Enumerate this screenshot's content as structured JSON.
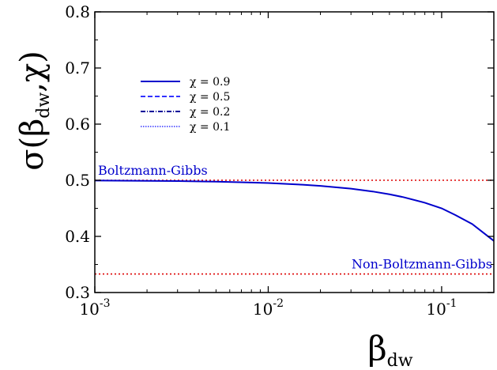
{
  "chart_data": {
    "type": "line",
    "xscale": "log",
    "xlim": [
      0.001,
      0.2
    ],
    "ylim": [
      0.3,
      0.8
    ],
    "grid": false,
    "legend_placement": "upper-left",
    "x_ticks": [
      {
        "value": 0.001,
        "base": "10",
        "exp": "-3"
      },
      {
        "value": 0.01,
        "base": "10",
        "exp": "-2"
      },
      {
        "value": 0.1,
        "base": "10",
        "exp": "-1"
      }
    ],
    "y_ticks": [
      {
        "value": 0.3,
        "label": "0.3"
      },
      {
        "value": 0.4,
        "label": "0.4"
      },
      {
        "value": 0.5,
        "label": "0.5"
      },
      {
        "value": 0.6,
        "label": "0.6"
      },
      {
        "value": 0.7,
        "label": "0.7"
      },
      {
        "value": 0.8,
        "label": "0.8"
      }
    ],
    "xlabel": {
      "main": "β",
      "sub": "dw"
    },
    "ylabel": {
      "pre": "σ(β",
      "sub": "dw",
      "post": ",χ)"
    },
    "series": [
      {
        "name": "χ = 0.9",
        "color": "#0000cc",
        "style": "solid",
        "x": [
          0.001,
          0.002,
          0.003,
          0.005,
          0.008,
          0.01,
          0.015,
          0.02,
          0.03,
          0.04,
          0.05,
          0.06,
          0.08,
          0.1,
          0.12,
          0.15,
          0.2
        ],
        "y": [
          0.4995,
          0.499,
          0.4985,
          0.4975,
          0.496,
          0.495,
          0.4925,
          0.49,
          0.485,
          0.48,
          0.475,
          0.47,
          0.46,
          0.45,
          0.438,
          0.422,
          0.392
        ]
      },
      {
        "name": "χ = 0.5",
        "color": "#3333ff",
        "style": "dashed",
        "x": [],
        "y": []
      },
      {
        "name": "χ = 0.2",
        "color": "#000099",
        "style": "dashdot",
        "x": [],
        "y": []
      },
      {
        "name": "χ = 0.1",
        "color": "#6666ff",
        "style": "dotted",
        "x": [],
        "y": []
      }
    ],
    "reference_lines": [
      {
        "label": "Boltzmann-Gibbs",
        "y": 0.5,
        "color": "#dd0000",
        "label_color": "#0000cc"
      },
      {
        "label": "Non-Boltzmann-Gibbs",
        "y": 0.333,
        "color": "#dd0000",
        "label_color": "#0000cc"
      }
    ]
  }
}
